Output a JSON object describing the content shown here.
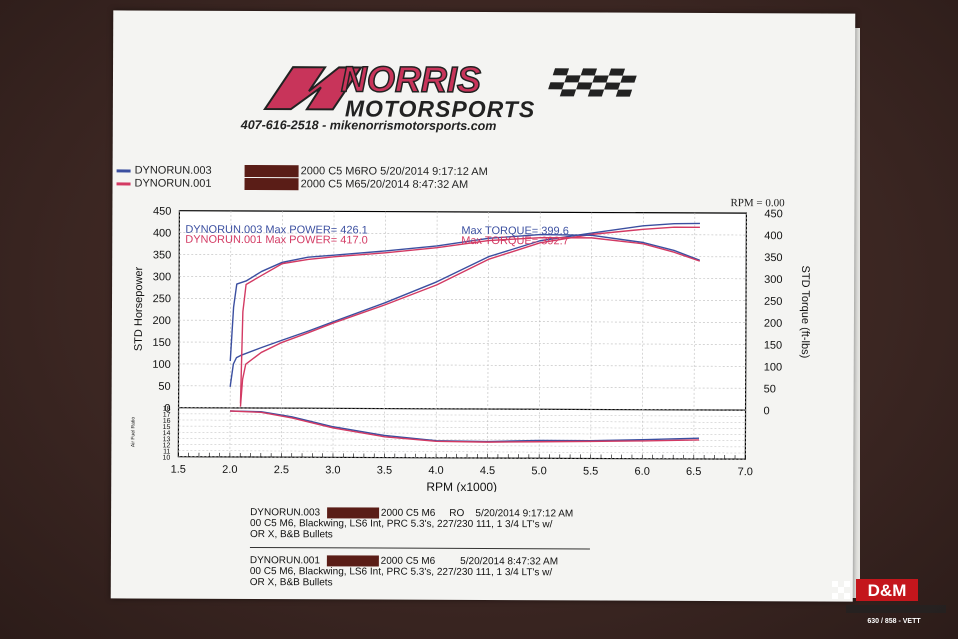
{
  "brand": {
    "name_top": "NORRIS",
    "name_bottom": "MOTORSPORTS",
    "contact": "407-616-2518 - mikenorrismotorsports.com"
  },
  "header_runs": [
    {
      "run": "DYNORUN.003",
      "text": "2000 C5 M6RO  5/20/2014 9:17:12 AM",
      "color": "#3b4fa0"
    },
    {
      "run": "DYNORUN.001",
      "text": "2000 C5 M65/20/2014 8:47:32 AM",
      "color": "#d33a63"
    }
  ],
  "rpm_readout": "RPM = 0.00",
  "chart_data": {
    "type": "line",
    "xlabel": "RPM (x1000)",
    "ylabel_left": "STD Horsepower",
    "ylabel_right": "STD Torque (ft-lbs)",
    "xlim": [
      1.5,
      7.0
    ],
    "xticks": [
      "1.5",
      "2.0",
      "2.5",
      "3.0",
      "3.5",
      "4.0",
      "4.5",
      "5.0",
      "5.5",
      "6.0",
      "6.5",
      "7.0"
    ],
    "ylim_left": [
      0,
      450
    ],
    "yticks_left": [
      "0",
      "50",
      "100",
      "150",
      "200",
      "250",
      "300",
      "350",
      "400",
      "450"
    ],
    "ylim_right": [
      0,
      450
    ],
    "yticks_right": [
      "0",
      "50",
      "100",
      "150",
      "200",
      "250",
      "300",
      "350",
      "400",
      "450"
    ],
    "afr_axis_label": "Air Fuel Ratio",
    "afr_ylim": [
      10,
      18
    ],
    "afr_yticks": [
      "18",
      "17",
      "16",
      "15",
      "14",
      "13",
      "12",
      "11",
      "10"
    ],
    "annotations": [
      {
        "text": "DYNORUN.003  Max POWER= 426.1",
        "color": "#3b4fa0"
      },
      {
        "text": "DYNORUN.001  Max POWER= 417.0",
        "color": "#d33a63"
      },
      {
        "text": "Max TORQUE= 399.6",
        "color": "#3b4fa0"
      },
      {
        "text": "Max TORQUE= 392.7",
        "color": "#d33a63"
      }
    ],
    "series": [
      {
        "name": "DYNORUN.003",
        "kind": "power",
        "color": "#3b4fa0",
        "x": [
          2.0,
          2.03,
          2.06,
          2.1,
          2.3,
          2.5,
          2.75,
          3.0,
          3.5,
          4.0,
          4.5,
          5.0,
          5.5,
          6.0,
          6.3,
          6.55
        ],
        "y": [
          48,
          100,
          115,
          120,
          138,
          155,
          176,
          198,
          242,
          290,
          348,
          385,
          403,
          420,
          425,
          426
        ]
      },
      {
        "name": "DYNORUN.001",
        "kind": "power",
        "color": "#d33a63",
        "x": [
          2.1,
          2.12,
          2.15,
          2.3,
          2.5,
          2.75,
          3.0,
          3.5,
          4.0,
          4.5,
          5.0,
          5.5,
          6.0,
          6.3,
          6.55
        ],
        "y": [
          3,
          65,
          100,
          127,
          150,
          172,
          195,
          237,
          283,
          342,
          380,
          400,
          412,
          417,
          417
        ]
      },
      {
        "name": "DYNORUN.003",
        "kind": "torque",
        "color": "#3b4fa0",
        "x": [
          2.0,
          2.03,
          2.06,
          2.15,
          2.3,
          2.5,
          2.75,
          3.0,
          3.5,
          4.0,
          4.5,
          5.0,
          5.5,
          6.0,
          6.3,
          6.55
        ],
        "y": [
          107,
          230,
          283,
          290,
          312,
          333,
          345,
          350,
          360,
          372,
          390,
          399,
          398,
          382,
          364,
          342
        ]
      },
      {
        "name": "DYNORUN.001",
        "kind": "torque",
        "color": "#d33a63",
        "x": [
          2.1,
          2.12,
          2.15,
          2.3,
          2.5,
          2.75,
          3.0,
          3.5,
          4.0,
          4.5,
          5.0,
          5.5,
          6.0,
          6.3,
          6.55
        ],
        "y": [
          10,
          220,
          282,
          303,
          330,
          340,
          346,
          356,
          368,
          385,
          392,
          392,
          379,
          360,
          340
        ]
      },
      {
        "name": "DYNORUN.003",
        "kind": "afr",
        "color": "#3b4fa0",
        "x": [
          2.0,
          2.3,
          2.6,
          3.0,
          3.5,
          4.0,
          4.5,
          5.0,
          5.5,
          6.0,
          6.55
        ],
        "y": [
          17.5,
          17.4,
          16.6,
          15.0,
          13.6,
          12.8,
          12.7,
          12.9,
          12.9,
          13.1,
          13.4
        ]
      },
      {
        "name": "DYNORUN.001",
        "kind": "afr",
        "color": "#d33a63",
        "x": [
          2.0,
          2.3,
          2.6,
          3.0,
          3.5,
          4.0,
          4.5,
          5.0,
          5.5,
          6.0,
          6.55
        ],
        "y": [
          17.5,
          17.3,
          16.4,
          14.8,
          13.4,
          12.7,
          12.6,
          12.7,
          12.8,
          12.9,
          13.1
        ]
      }
    ]
  },
  "footer_runs": [
    {
      "run": "DYNORUN.003",
      "tail": "2000 C5 M6     RO    5/20/2014 9:17:12 AM",
      "line2": "00 C5 M6, Blackwing, LS6 Int, PRC 5.3's, 227/230 111, 1 3/4 LT's w/",
      "line3": "OR X, B&B Bullets"
    },
    {
      "run": "DYNORUN.001",
      "tail": "2000 C5 M6         5/20/2014 8:47:32 AM",
      "line2": "00 C5 M6, Blackwing, LS6 Int, PRC 5.3's, 227/230 111, 1 3/4 LT's w/",
      "line3": "OR X, B&B Bullets"
    }
  ],
  "watermark": {
    "text": "D&M",
    "sub": "630 / 858 - VETT"
  }
}
